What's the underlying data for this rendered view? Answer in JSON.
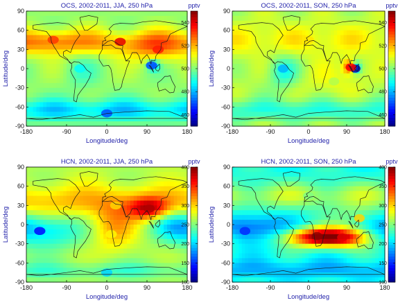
{
  "panels": [
    {
      "title": "OCS, 2002-2011, JJA, 250 hPa",
      "unit": "pptv",
      "cbar_ticks": [
        "460",
        "480",
        "500",
        "520",
        "540"
      ],
      "vmin": 450,
      "vmax": 550,
      "xlabel": "Longitude/deg",
      "ylabel": "Latitude/deg",
      "xticks": [
        "-180",
        "-90",
        "0",
        "90",
        "180"
      ],
      "yticks": [
        "90",
        "60",
        "30",
        "0",
        "-30",
        "-60",
        "-90"
      ],
      "highlights": [
        {
          "lon": 30,
          "lat": 42,
          "value": 540
        },
        {
          "lon": -120,
          "lat": 45,
          "value": 532
        },
        {
          "lon": 115,
          "lat": 30,
          "value": 535
        },
        {
          "lon": 100,
          "lat": 5,
          "value": 470
        },
        {
          "lon": -60,
          "lat": 0,
          "value": 488
        },
        {
          "lon": 0,
          "lat": -70,
          "value": 470
        }
      ]
    },
    {
      "title": "OCS, 2002-2011, SON, 250 hPa",
      "unit": "pptv",
      "cbar_ticks": [
        "460",
        "480",
        "500",
        "520",
        "540"
      ],
      "vmin": 450,
      "vmax": 550,
      "xlabel": "Longitude/deg",
      "ylabel": "Latitude/deg",
      "xticks": [
        "-180",
        "-90",
        "0",
        "90",
        "180"
      ],
      "yticks": [
        "90",
        "60",
        "30",
        "0",
        "-30",
        "-60",
        "-90"
      ],
      "highlights": [
        {
          "lon": 110,
          "lat": 0,
          "value": 455
        },
        {
          "lon": 100,
          "lat": 2,
          "value": 538
        },
        {
          "lon": -60,
          "lat": 0,
          "value": 480
        },
        {
          "lon": 0,
          "lat": 45,
          "value": 515
        },
        {
          "lon": 60,
          "lat": -20,
          "value": 505
        }
      ]
    },
    {
      "title": "HCN, 2002-2011, JJA, 250 hPa",
      "unit": "pptv",
      "cbar_ticks": [
        "100",
        "150",
        "200",
        "250",
        "300",
        "350",
        "400"
      ],
      "vmin": 100,
      "vmax": 400,
      "xlabel": "Longitude/deg",
      "ylabel": "Latitude/deg",
      "xticks": [
        "-180",
        "-90",
        "0",
        "90",
        "180"
      ],
      "yticks": [
        "90",
        "60",
        "30",
        "0",
        "-30",
        "-60",
        "-90"
      ],
      "highlights": [
        {
          "lon": 95,
          "lat": 25,
          "value": 385
        },
        {
          "lon": 20,
          "lat": 30,
          "value": 300
        },
        {
          "lon": -150,
          "lat": -10,
          "value": 140
        },
        {
          "lon": 10,
          "lat": -15,
          "value": 290
        },
        {
          "lon": 0,
          "lat": -75,
          "value": 200
        }
      ]
    },
    {
      "title": "HCN, 2002-2011, SON, 250 hPa",
      "unit": "pptv",
      "cbar_ticks": [
        "100",
        "150",
        "200",
        "250",
        "300",
        "350",
        "400"
      ],
      "vmin": 100,
      "vmax": 400,
      "xlabel": "Longitude/deg",
      "ylabel": "Latitude/deg",
      "xticks": [
        "-180",
        "-90",
        "0",
        "90",
        "180"
      ],
      "yticks": [
        "90",
        "60",
        "30",
        "0",
        "-30",
        "-60",
        "-90"
      ],
      "highlights": [
        {
          "lon": 20,
          "lat": -18,
          "value": 395
        },
        {
          "lon": 80,
          "lat": -20,
          "value": 370
        },
        {
          "lon": -150,
          "lat": -10,
          "value": 150
        },
        {
          "lon": 0,
          "lat": 45,
          "value": 250
        },
        {
          "lon": 120,
          "lat": 10,
          "value": 300
        }
      ]
    }
  ],
  "chart_data": [
    {
      "type": "heatmap",
      "title": "OCS, 2002-2011, JJA, 250 hPa",
      "xlabel": "Longitude/deg",
      "ylabel": "Latitude/deg",
      "xlim": [
        -180,
        180
      ],
      "ylim": [
        -90,
        90
      ],
      "colorbar_label": "pptv",
      "colorbar_range": [
        450,
        550
      ]
    },
    {
      "type": "heatmap",
      "title": "OCS, 2002-2011, SON, 250 hPa",
      "xlabel": "Longitude/deg",
      "ylabel": "Latitude/deg",
      "xlim": [
        -180,
        180
      ],
      "ylim": [
        -90,
        90
      ],
      "colorbar_label": "pptv",
      "colorbar_range": [
        450,
        550
      ]
    },
    {
      "type": "heatmap",
      "title": "HCN, 2002-2011, JJA, 250 hPa",
      "xlabel": "Longitude/deg",
      "ylabel": "Latitude/deg",
      "xlim": [
        -180,
        180
      ],
      "ylim": [
        -90,
        90
      ],
      "colorbar_label": "pptv",
      "colorbar_range": [
        100,
        400
      ]
    },
    {
      "type": "heatmap",
      "title": "HCN, 2002-2011, SON, 250 hPa",
      "xlabel": "Longitude/deg",
      "ylabel": "Latitude/deg",
      "xlim": [
        -180,
        180
      ],
      "ylim": [
        -90,
        90
      ],
      "colorbar_label": "pptv",
      "colorbar_range": [
        100,
        400
      ]
    }
  ]
}
